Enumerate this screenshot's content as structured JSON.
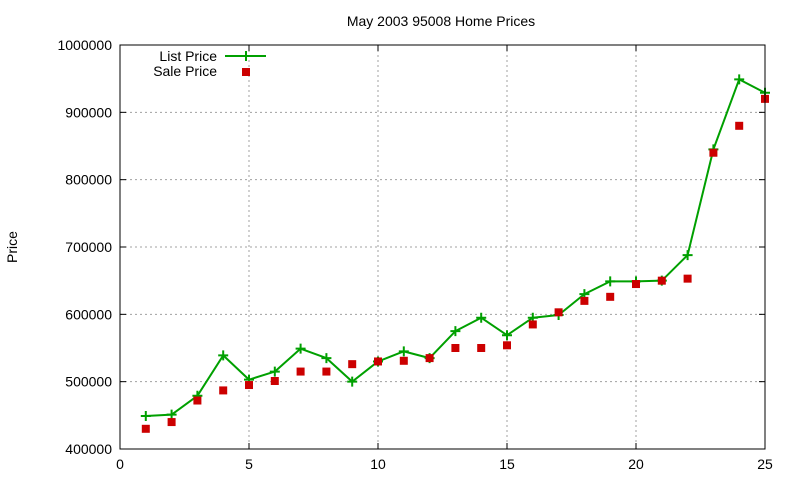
{
  "chart_data": {
    "type": "line",
    "title": "May 2003 95008 Home Prices",
    "xlabel": "",
    "ylabel": "Price",
    "xlim": [
      0,
      25
    ],
    "ylim": [
      400000,
      1000000
    ],
    "x_ticks": [
      "0",
      "5",
      "10",
      "15",
      "20",
      "25"
    ],
    "y_ticks": [
      "400000",
      "500000",
      "600000",
      "700000",
      "800000",
      "900000",
      "1000000"
    ],
    "grid": true,
    "legend_position": "top-left",
    "x": [
      1,
      2,
      3,
      4,
      5,
      6,
      7,
      8,
      9,
      10,
      11,
      12,
      13,
      14,
      15,
      16,
      17,
      18,
      19,
      20,
      21,
      22,
      23,
      24,
      25
    ],
    "series": [
      {
        "name": "List Price",
        "style": "line-with-plus-markers",
        "color": "#00a000",
        "values": [
          449000,
          451000,
          479000,
          539000,
          503000,
          515000,
          549000,
          535000,
          500000,
          530000,
          545000,
          535000,
          575000,
          595000,
          569000,
          595000,
          599000,
          630000,
          649000,
          649000,
          650000,
          688000,
          845000,
          949000,
          929000
        ]
      },
      {
        "name": "Sale Price",
        "style": "square-markers",
        "color": "#cc0000",
        "values": [
          430000,
          440000,
          472000,
          487000,
          495000,
          501000,
          515000,
          515000,
          526000,
          530000,
          531000,
          535000,
          550000,
          550000,
          554000,
          585000,
          603000,
          620000,
          626000,
          645000,
          650000,
          653000,
          840000,
          880000,
          920000
        ]
      }
    ]
  }
}
